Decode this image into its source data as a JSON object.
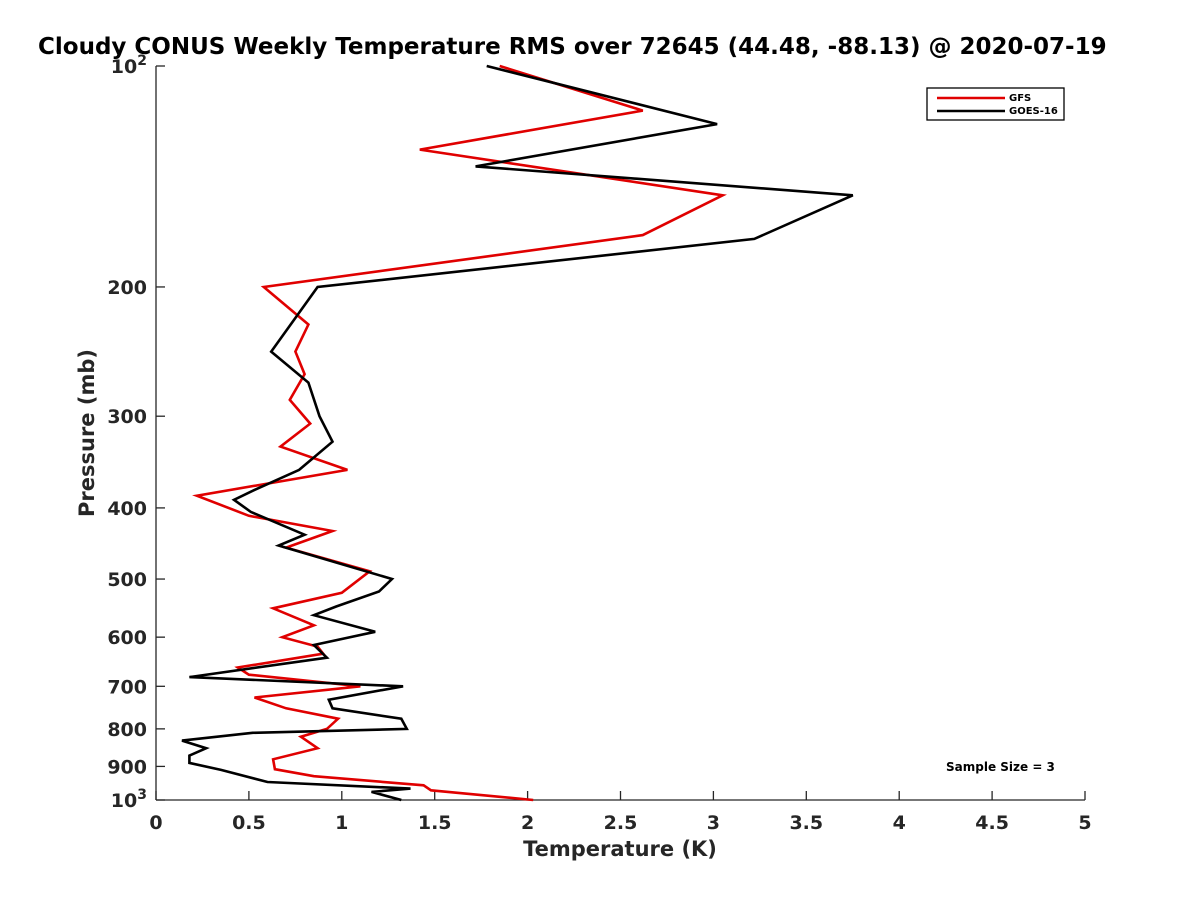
{
  "chart_data": {
    "type": "line",
    "title": "Cloudy CONUS Weekly Temperature RMS over 72645 (44.48, -88.13) @ 2020-07-19",
    "xlabel": "Temperature (K)",
    "ylabel": "Pressure (mb)",
    "xlim": [
      0,
      5
    ],
    "ylim": [
      100,
      1000
    ],
    "y_scale": "log",
    "y_reversed": true,
    "grid": false,
    "legend_position": "top-right",
    "x_ticks": [
      {
        "value": 0,
        "label": "0"
      },
      {
        "value": 0.5,
        "label": "0.5"
      },
      {
        "value": 1,
        "label": "1"
      },
      {
        "value": 1.5,
        "label": "1.5"
      },
      {
        "value": 2,
        "label": "2"
      },
      {
        "value": 2.5,
        "label": "2.5"
      },
      {
        "value": 3,
        "label": "3"
      },
      {
        "value": 3.5,
        "label": "3.5"
      },
      {
        "value": 4,
        "label": "4"
      },
      {
        "value": 4.5,
        "label": "4.5"
      },
      {
        "value": 5,
        "label": "5"
      }
    ],
    "y_ticks": [
      {
        "value": 100,
        "label": "10",
        "sup": "2"
      },
      {
        "value": 200,
        "label": "200",
        "sup": ""
      },
      {
        "value": 300,
        "label": "300",
        "sup": ""
      },
      {
        "value": 400,
        "label": "400",
        "sup": ""
      },
      {
        "value": 500,
        "label": "500",
        "sup": ""
      },
      {
        "value": 600,
        "label": "600",
        "sup": ""
      },
      {
        "value": 700,
        "label": "700",
        "sup": ""
      },
      {
        "value": 800,
        "label": "800",
        "sup": ""
      },
      {
        "value": 900,
        "label": "900",
        "sup": ""
      },
      {
        "value": 1000,
        "label": "10",
        "sup": "3"
      }
    ],
    "annotation": "Sample Size = 3",
    "series": [
      {
        "name": "GFS",
        "color": "#e00000",
        "points": [
          [
            1.85,
            100
          ],
          [
            2.62,
            115
          ],
          [
            1.42,
            130
          ],
          [
            3.05,
            150
          ],
          [
            2.62,
            170
          ],
          [
            0.58,
            200
          ],
          [
            0.82,
            225
          ],
          [
            0.75,
            245
          ],
          [
            0.8,
            263
          ],
          [
            0.72,
            285
          ],
          [
            0.83,
            307
          ],
          [
            0.67,
            330
          ],
          [
            1.03,
            355
          ],
          [
            0.22,
            385
          ],
          [
            0.5,
            410
          ],
          [
            0.95,
            430
          ],
          [
            0.7,
            453
          ],
          [
            1.15,
            488
          ],
          [
            1.0,
            522
          ],
          [
            0.63,
            548
          ],
          [
            0.85,
            578
          ],
          [
            0.68,
            600
          ],
          [
            0.87,
            618
          ],
          [
            0.9,
            632
          ],
          [
            0.44,
            660
          ],
          [
            0.5,
            675
          ],
          [
            1.1,
            700
          ],
          [
            0.53,
            725
          ],
          [
            0.7,
            750
          ],
          [
            0.98,
            775
          ],
          [
            0.92,
            800
          ],
          [
            0.78,
            820
          ],
          [
            0.87,
            850
          ],
          [
            0.63,
            880
          ],
          [
            0.64,
            908
          ],
          [
            0.85,
            928
          ],
          [
            1.44,
            955
          ],
          [
            1.48,
            970
          ],
          [
            2.03,
            1000
          ]
        ]
      },
      {
        "name": "GOES-16",
        "color": "#000000",
        "points": [
          [
            1.78,
            100
          ],
          [
            3.02,
            120
          ],
          [
            1.72,
            137
          ],
          [
            3.75,
            150
          ],
          [
            3.22,
            172
          ],
          [
            0.87,
            200
          ],
          [
            0.62,
            245
          ],
          [
            0.82,
            270
          ],
          [
            0.88,
            300
          ],
          [
            0.95,
            325
          ],
          [
            0.77,
            355
          ],
          [
            0.53,
            378
          ],
          [
            0.42,
            390
          ],
          [
            0.51,
            405
          ],
          [
            0.8,
            435
          ],
          [
            0.66,
            450
          ],
          [
            1.27,
            500
          ],
          [
            1.2,
            520
          ],
          [
            0.97,
            545
          ],
          [
            0.85,
            560
          ],
          [
            1.18,
            590
          ],
          [
            0.85,
            615
          ],
          [
            0.92,
            640
          ],
          [
            0.18,
            680
          ],
          [
            1.33,
            700
          ],
          [
            0.93,
            730
          ],
          [
            0.95,
            750
          ],
          [
            1.32,
            775
          ],
          [
            1.35,
            800
          ],
          [
            0.52,
            810
          ],
          [
            0.14,
            830
          ],
          [
            0.27,
            850
          ],
          [
            0.18,
            870
          ],
          [
            0.18,
            890
          ],
          [
            0.35,
            910
          ],
          [
            0.6,
            945
          ],
          [
            1.37,
            965
          ],
          [
            1.16,
            975
          ],
          [
            1.32,
            1000
          ]
        ]
      }
    ]
  }
}
